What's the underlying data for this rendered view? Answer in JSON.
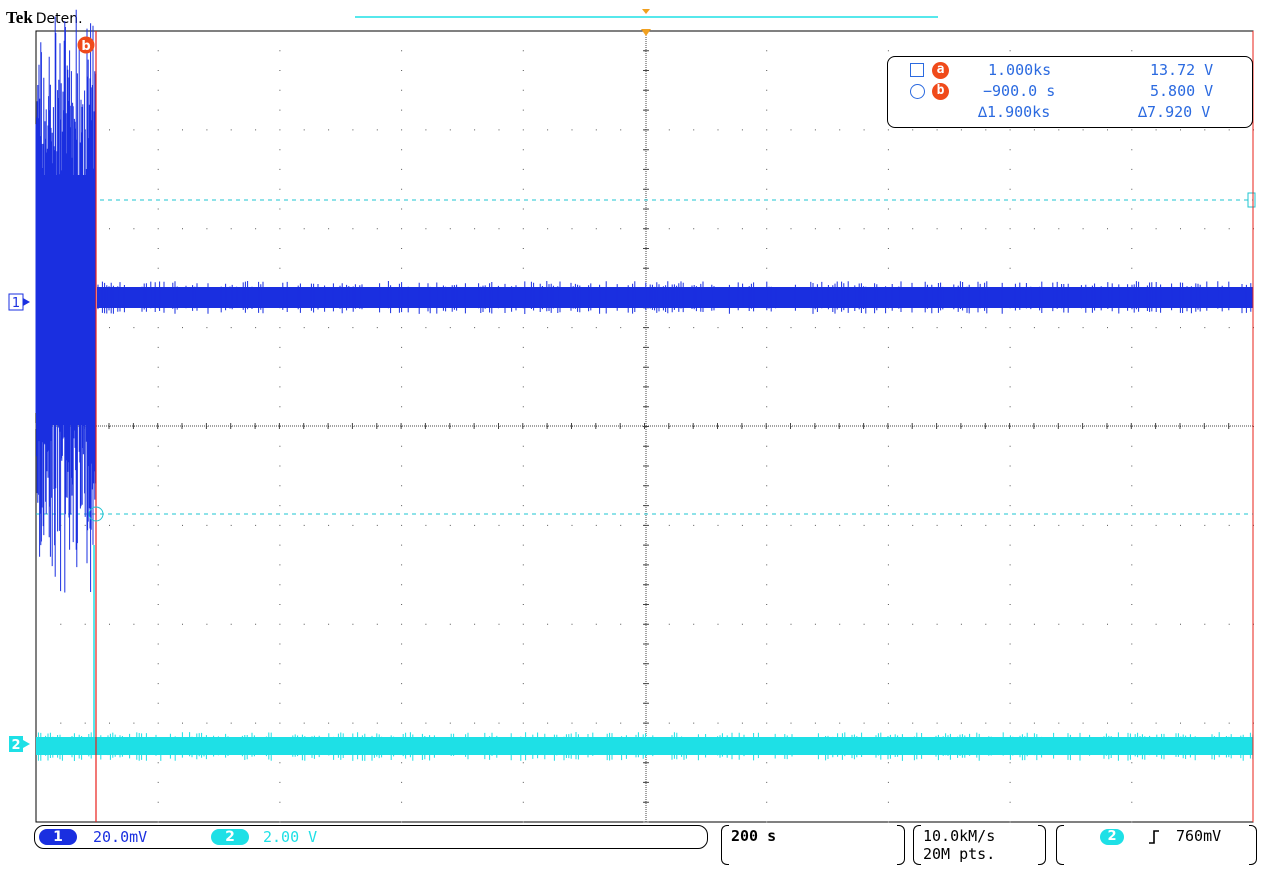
{
  "header": {
    "brand": "Tek",
    "acquisition_state": "Deten."
  },
  "display": {
    "trace_colors": {
      "ch1": "#1a2fe0",
      "ch2": "#1ee0e6",
      "cursor": "#e8201a",
      "trigger_marker": "#f0a020",
      "badge": "#f04a1a",
      "readout_text": "#2b6ae0"
    },
    "channel_markers": {
      "ch1": "1",
      "ch2": "2"
    },
    "cursor_label": "b",
    "grid": true
  },
  "cursor_readout": {
    "a": {
      "label": "a",
      "time": "1.000ks",
      "value": "13.72 V"
    },
    "b": {
      "label": "b",
      "time": "−900.0 s",
      "value": "5.800 V"
    },
    "delta": {
      "time": "∆1.900ks",
      "value": "∆7.920 V"
    }
  },
  "status": {
    "ch1": {
      "number": "1",
      "scale": "20.0mV"
    },
    "ch2": {
      "number": "2",
      "scale": "2.00 V"
    },
    "timebase": "200 s",
    "sample_rate": "10.0kM/s",
    "record_length": "20M pts.",
    "trigger": {
      "source": "2",
      "slope_icon": "rising-edge-icon",
      "level": "760mV"
    }
  }
}
